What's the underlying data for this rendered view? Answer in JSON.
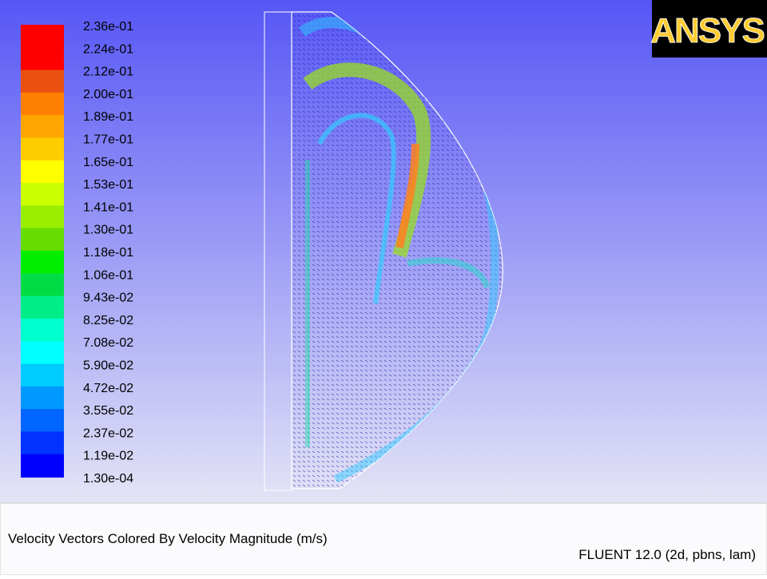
{
  "colorbar": {
    "labels": [
      "2.36e-01",
      "2.24e-01",
      "2.12e-01",
      "2.00e-01",
      "1.89e-01",
      "1.77e-01",
      "1.65e-01",
      "1.53e-01",
      "1.41e-01",
      "1.30e-01",
      "1.18e-01",
      "1.06e-01",
      "9.43e-02",
      "8.25e-02",
      "7.08e-02",
      "5.90e-02",
      "4.72e-02",
      "3.55e-02",
      "2.37e-02",
      "1.19e-02",
      "1.30e-04"
    ],
    "colors": [
      "#ff0000",
      "#ff0000",
      "#ea5010",
      "#ff7f00",
      "#ffa500",
      "#ffcc00",
      "#ffff00",
      "#ccff00",
      "#99ee00",
      "#66dd00",
      "#00ee00",
      "#00dd44",
      "#00ee88",
      "#00ffcc",
      "#00ffff",
      "#00ccff",
      "#0099ff",
      "#0066ff",
      "#0033ff",
      "#0000ff"
    ]
  },
  "logo": {
    "text": "ANSYS"
  },
  "footer": {
    "title": "Velocity Vectors Colored By Velocity Magnitude (m/s)",
    "solver": "FLUENT 12.0 (2d, pbns, lam)"
  }
}
